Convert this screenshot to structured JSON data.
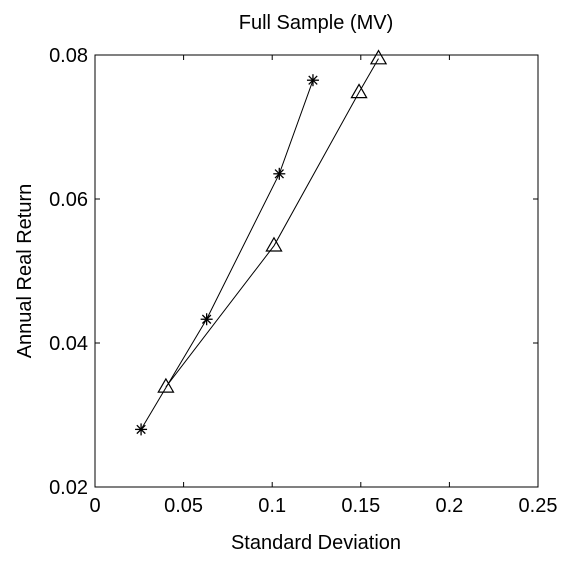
{
  "chart_data": {
    "type": "line",
    "title": "Full Sample (MV)",
    "xlabel": "Standard Deviation",
    "ylabel": "Annual Real Return",
    "xlim": [
      0,
      0.25
    ],
    "ylim": [
      0.02,
      0.08
    ],
    "xticks": [
      "0",
      "0.05",
      "0.1",
      "0.15",
      "0.2",
      "0.25"
    ],
    "yticks": [
      "0.02",
      "0.04",
      "0.06",
      "0.08"
    ],
    "grid": false,
    "legend": "none",
    "series": [
      {
        "marker": "asterisk",
        "color": "#000000",
        "x": [
          0.026,
          0.063,
          0.104,
          0.123
        ],
        "y": [
          0.028,
          0.0433,
          0.0635,
          0.0765
        ]
      },
      {
        "marker": "triangle",
        "color": "#000000",
        "x": [
          0.04,
          0.101,
          0.149,
          0.16
        ],
        "y": [
          0.0339,
          0.0535,
          0.0748,
          0.0795
        ]
      }
    ]
  }
}
